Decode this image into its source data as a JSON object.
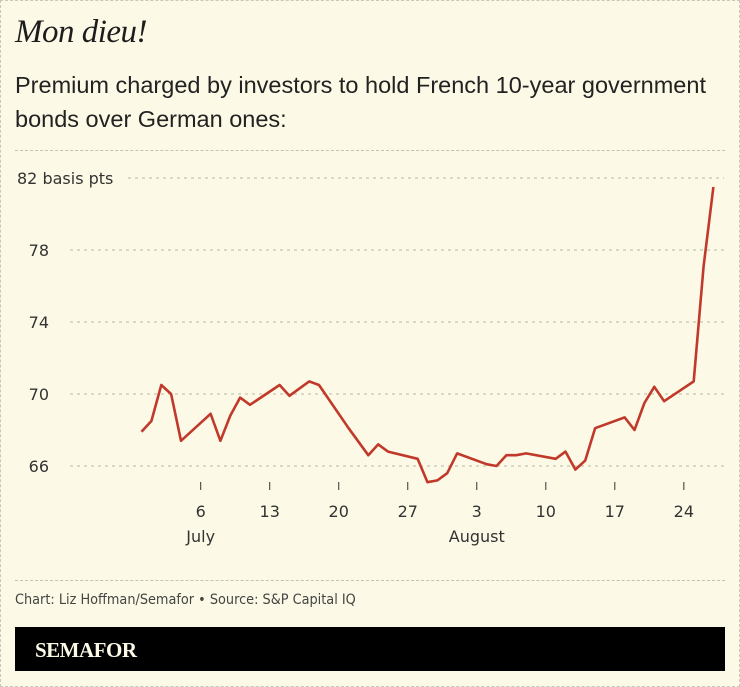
{
  "header": {
    "title": "Mon dieu!",
    "subtitle": "Premium charged by investors to hold French 10-year government bonds over German ones:"
  },
  "footer": {
    "credit": "Chart: Liz Hoffman/Semafor • Source: S&P Capital IQ",
    "logo": "SEMAFOR"
  },
  "colors": {
    "line": "#c0392b",
    "background": "#fcfae6",
    "grid": "#b8b6a6"
  },
  "chart_data": {
    "type": "line",
    "title": "",
    "xlabel": "",
    "ylabel": "",
    "y_unit_label": "82 basis pts",
    "ylim": [
      64.5,
      82.5
    ],
    "yticks": [
      66,
      70,
      74,
      78,
      82
    ],
    "ytick_labels": [
      "66",
      "70",
      "74",
      "78",
      "82 basis pts"
    ],
    "xticks": [
      "Jul 6",
      "Jul 13",
      "Jul 20",
      "Jul 27",
      "Aug 3",
      "Aug 10",
      "Aug 17",
      "Aug 24"
    ],
    "xtick_labels": [
      "6",
      "13",
      "20",
      "27",
      "3",
      "10",
      "17",
      "24"
    ],
    "month_labels": [
      {
        "label": "July",
        "at": "Jul 6"
      },
      {
        "label": "August",
        "at": "Aug 3"
      }
    ],
    "grid": "horizontal dashed",
    "series": [
      {
        "x": [
          "Jun 30",
          "Jul 1",
          "Jul 2",
          "Jul 3",
          "Jul 4",
          "Jul 7",
          "Jul 8",
          "Jul 9",
          "Jul 10",
          "Jul 11",
          "Jul 14",
          "Jul 15",
          "Jul 17",
          "Jul 18",
          "Jul 21",
          "Jul 23",
          "Jul 24",
          "Jul 25",
          "Jul 28",
          "Jul 29",
          "Jul 30",
          "Jul 31",
          "Aug 1",
          "Aug 4",
          "Aug 5",
          "Aug 6",
          "Aug 7",
          "Aug 8",
          "Aug 11",
          "Aug 12",
          "Aug 13",
          "Aug 14",
          "Aug 15",
          "Aug 18",
          "Aug 19",
          "Aug 20",
          "Aug 21",
          "Aug 22",
          "Aug 25",
          "Aug 26",
          "Aug 27"
        ],
        "values": [
          67.9,
          68.5,
          70.5,
          70.0,
          67.4,
          68.9,
          67.4,
          68.8,
          69.8,
          69.4,
          70.5,
          69.9,
          70.7,
          70.5,
          68.1,
          66.6,
          67.2,
          66.8,
          66.4,
          65.1,
          65.2,
          65.6,
          66.7,
          66.1,
          66.0,
          66.6,
          66.6,
          66.7,
          66.4,
          66.8,
          65.8,
          66.3,
          68.1,
          68.7,
          68.0,
          69.5,
          70.4,
          69.6,
          70.7,
          77.1,
          81.5
        ]
      }
    ]
  }
}
